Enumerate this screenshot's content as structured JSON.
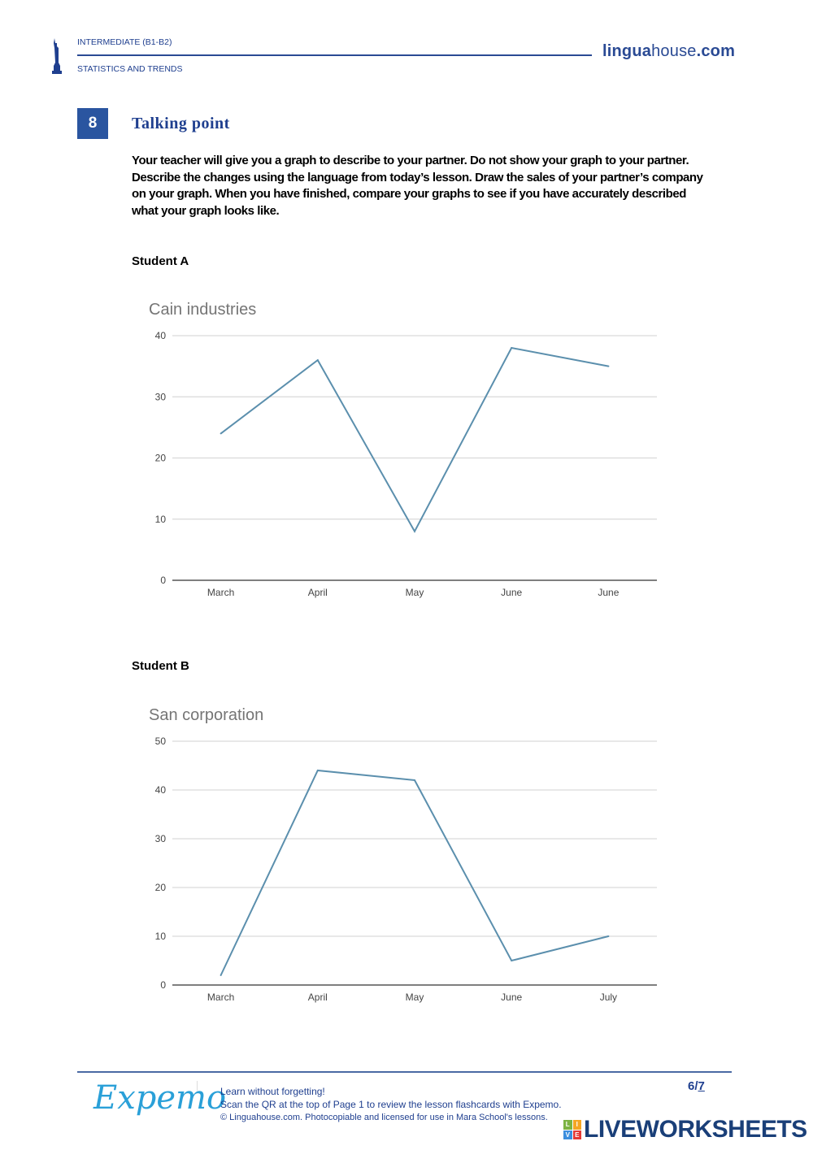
{
  "header": {
    "level": "INTERMEDIATE (B1-B2)",
    "topic": "STATISTICS AND TRENDS",
    "brand_bold": "lingua",
    "brand_regular": "house",
    "brand_tld": ".com"
  },
  "section": {
    "number": "8",
    "title": "Talking point",
    "instructions": [
      "Your teacher will give you a graph to describe to your partner. Do not show your graph to your partner.",
      "Describe the changes using the language from today’s lesson. Draw the sales of your partner’s company",
      "on your graph. When you have finished, compare your graphs to see if you have accurately described",
      "what your graph looks like."
    ]
  },
  "students": {
    "a": "Student A",
    "b": "Student B"
  },
  "colors": {
    "accent": "#2a55a0",
    "line": "#5b8fad",
    "grid": "#d9d9d9"
  },
  "chart_data": [
    {
      "type": "line",
      "title": "Cain industries",
      "categories": [
        "March",
        "April",
        "May",
        "June",
        "June"
      ],
      "values": [
        24,
        36,
        8,
        38,
        35
      ],
      "ylim": [
        0,
        40
      ],
      "yticks": [
        0,
        10,
        20,
        30,
        40
      ],
      "grid": true,
      "xlabel": "",
      "ylabel": ""
    },
    {
      "type": "line",
      "title": "San corporation",
      "categories": [
        "March",
        "April",
        "May",
        "June",
        "July"
      ],
      "values": [
        2,
        44,
        42,
        5,
        10
      ],
      "ylim": [
        0,
        50
      ],
      "yticks": [
        0,
        10,
        20,
        30,
        40,
        50
      ],
      "grid": true,
      "xlabel": "",
      "ylabel": ""
    }
  ],
  "footer": {
    "logo": "Expemo",
    "line1": "Learn without forgetting!",
    "line2": "Scan the QR at the top of Page 1 to review the lesson flashcards with Expemo.",
    "line3": "© Linguahouse.com. Photocopiable and licensed for use in Mara School's lessons.",
    "page_current": "6",
    "page_sep": "/",
    "page_total": "7",
    "liveworksheets": "LIVEWORKSHEETS",
    "lw_letters": [
      "L",
      "I",
      "V",
      "E"
    ]
  }
}
